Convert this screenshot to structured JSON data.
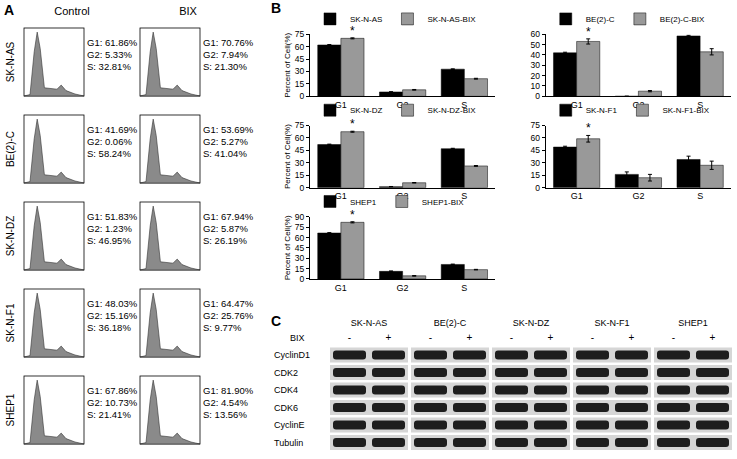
{
  "panel_a": {
    "label": "A",
    "columns": [
      "Control",
      "BIX"
    ],
    "rows": [
      {
        "cell_line": "SK-N-AS",
        "control": [
          "G1: 61.86%",
          "G2: 5.33%",
          "S: 32.81%"
        ],
        "bix": [
          "G1: 70.76%",
          "G2: 7.94%",
          "S: 21.30%"
        ]
      },
      {
        "cell_line": "BE(2)-C",
        "control": [
          "G1: 41.69%",
          "G2: 0.06%",
          "S: 58.24%"
        ],
        "bix": [
          "G1: 53.69%",
          "G2: 5.27%",
          "S: 41.04%"
        ]
      },
      {
        "cell_line": "SK-N-DZ",
        "control": [
          "G1: 51.83%",
          "G2: 1.23%",
          "S: 46.95%"
        ],
        "bix": [
          "G1: 67.94%",
          "G2: 5.87%",
          "S: 26.19%"
        ]
      },
      {
        "cell_line": "SK-N-F1",
        "control": [
          "G1: 48.03%",
          "G2: 15.16%",
          "S: 36.18%"
        ],
        "bix": [
          "G1: 64.47%",
          "G2: 25.76%",
          "S: 9.77%"
        ]
      },
      {
        "cell_line": "SHEP1",
        "control": [
          "G1: 67.86%",
          "G2: 10.73%",
          "S: 21.41%"
        ],
        "bix": [
          "G1: 81.90%",
          "G2: 4.54%",
          "S: 13.56%"
        ]
      }
    ]
  },
  "panel_b": {
    "label": "B"
  },
  "chart_data": [
    {
      "type": "bar",
      "categories": [
        "G1",
        "G2",
        "S"
      ],
      "series": [
        {
          "name": "SK-N-AS",
          "color": "#000000",
          "values": [
            62,
            5.3,
            32.8
          ],
          "errors": [
            0.5,
            0.3,
            0.4
          ]
        },
        {
          "name": "SK-N-AS-BIX",
          "color": "#999999",
          "values": [
            70,
            7.9,
            21.3
          ],
          "errors": [
            0.6,
            0.4,
            0.5
          ]
        }
      ],
      "ylim": [
        0,
        75
      ],
      "yticks": [
        0,
        15,
        30,
        45,
        60,
        75
      ],
      "y_label": "Percent of Cell(%)",
      "grid": false,
      "legend": "top",
      "annotations": [
        {
          "text": "*",
          "category": "G1",
          "series": "SK-N-AS-BIX"
        }
      ]
    },
    {
      "type": "bar",
      "categories": [
        "G1",
        "G2",
        "S"
      ],
      "series": [
        {
          "name": "BE(2)-C",
          "color": "#000000",
          "values": [
            42,
            0.1,
            58.3
          ],
          "errors": [
            0.6,
            0,
            0.6
          ]
        },
        {
          "name": "BE(2)-C-BIX",
          "color": "#999999",
          "values": [
            53,
            5,
            43
          ],
          "errors": [
            2.5,
            0.6,
            3
          ]
        }
      ],
      "ylim": [
        0,
        60
      ],
      "yticks": [
        0,
        10,
        20,
        30,
        40,
        50,
        60
      ],
      "grid": false,
      "legend": "top",
      "annotations": [
        {
          "text": "*",
          "category": "G1",
          "series": "BE(2)-C-BIX"
        }
      ]
    },
    {
      "type": "bar",
      "categories": [
        "G1",
        "G2",
        "S"
      ],
      "series": [
        {
          "name": "SK-N-DZ",
          "color": "#000000",
          "values": [
            52,
            1.2,
            47
          ],
          "errors": [
            0.5,
            0.2,
            0.5
          ]
        },
        {
          "name": "SK-N-DZ-BIX",
          "color": "#999999",
          "values": [
            67.5,
            5.9,
            26.2
          ],
          "errors": [
            0.6,
            0.3,
            0.5
          ]
        }
      ],
      "ylim": [
        0,
        75
      ],
      "yticks": [
        0,
        15,
        30,
        45,
        60,
        75
      ],
      "y_label": "Percent of Cell(%)",
      "grid": false,
      "legend": "top",
      "annotations": [
        {
          "text": "*",
          "category": "G1",
          "series": "SK-N-DZ-BIX"
        }
      ]
    },
    {
      "type": "bar",
      "categories": [
        "G1",
        "G2",
        "S"
      ],
      "series": [
        {
          "name": "SK-N-F1",
          "color": "#000000",
          "values": [
            49,
            16,
            34
          ],
          "errors": [
            1,
            3,
            4
          ]
        },
        {
          "name": "SK-N-F1-BIX",
          "color": "#999999",
          "values": [
            59,
            12,
            27
          ],
          "errors": [
            4,
            4,
            5
          ]
        }
      ],
      "ylim": [
        0,
        75
      ],
      "yticks": [
        0,
        15,
        30,
        45,
        60,
        75
      ],
      "grid": false,
      "legend": "top",
      "annotations": [
        {
          "text": "*",
          "category": "G1",
          "series": "SK-N-F1-BIX"
        }
      ]
    },
    {
      "type": "bar",
      "categories": [
        "G1",
        "G2",
        "S"
      ],
      "series": [
        {
          "name": "SHEP1",
          "color": "#000000",
          "values": [
            66.5,
            11,
            21
          ],
          "errors": [
            0.6,
            0.6,
            0.5
          ]
        },
        {
          "name": "SHEP1-BIX",
          "color": "#999999",
          "values": [
            82,
            4.5,
            13.5
          ],
          "errors": [
            0.8,
            0.4,
            0.4
          ]
        }
      ],
      "ylim": [
        0,
        90
      ],
      "yticks": [
        0,
        15,
        30,
        45,
        60,
        75,
        90
      ],
      "y_label": "Percent of Cell(%)",
      "grid": false,
      "legend": "top",
      "annotations": [
        {
          "text": "*",
          "category": "G1",
          "series": "SHEP1-BIX"
        }
      ]
    }
  ],
  "panel_c": {
    "label": "C",
    "treatment": "BIX",
    "lanes": [
      "-",
      "+"
    ],
    "cell_lines": [
      "SK-N-AS",
      "BE(2)-C",
      "SK-N-DZ",
      "SK-N-F1",
      "SHEP1"
    ],
    "proteins": [
      "CyclinD1",
      "CDK2",
      "CDK4",
      "CDK6",
      "CyclinE",
      "Tubulin"
    ]
  }
}
